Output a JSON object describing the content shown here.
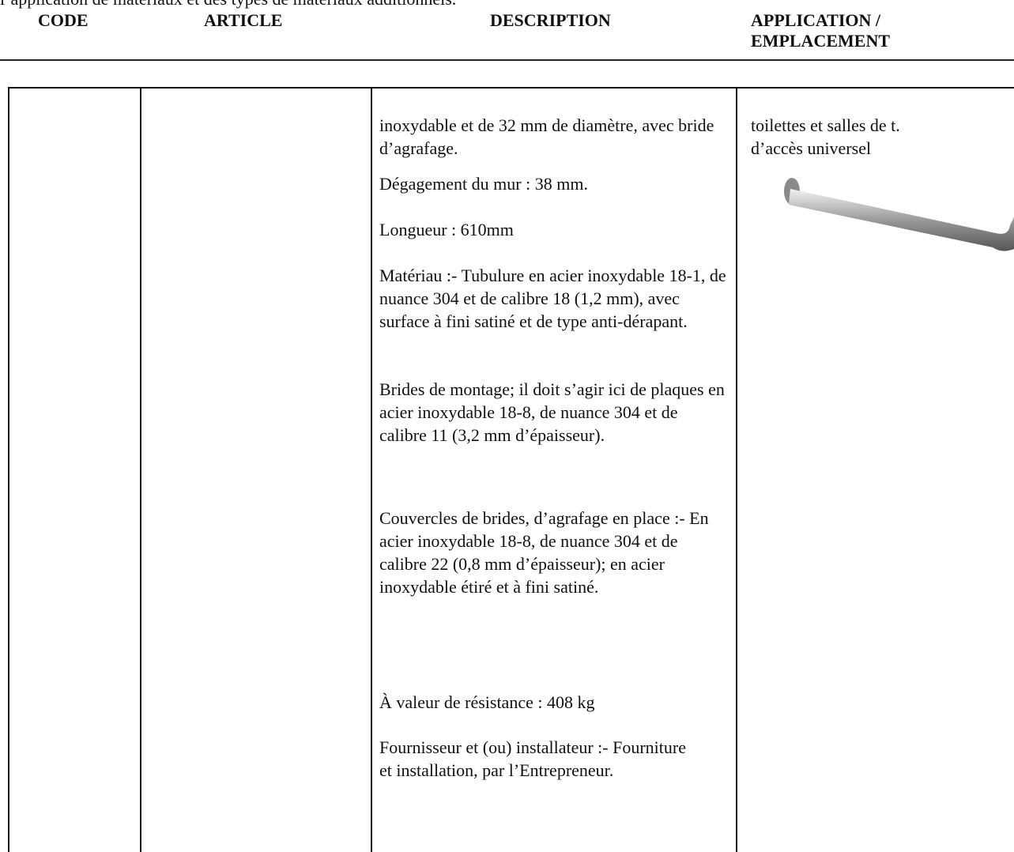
{
  "intro": "l’application de matériaux et des types de matériaux additionnels.",
  "header": {
    "columns": [
      "CODE",
      "ARTICLE",
      "DESCRIPTION",
      "APPLICATION / EMPLACEMENT"
    ]
  },
  "table": {
    "description": [
      "inoxydable et de 32 mm de diamètre, avec bride d’agrafage.",
      "Dégagement du mur : 38 mm.",
      "Longueur : 610mm",
      "Matériau :- Tubulure en acier inoxydable 18-1, de nuance 304 et de calibre 18 (1,2 mm), avec surface à fini satiné et de type anti-dérapant.",
      "Brides de montage; il doit s’agir ici de plaques en acier inoxydable 18-8, de nuance 304 et de calibre 11 (3,2 mm d’épaisseur).",
      "Couvercles de brides, d’agrafage en place :- En acier inoxydable 18-8, de nuance 304 et de calibre 22 (0,8 mm d’épaisseur); en acier inoxydable étiré et à fini satiné.",
      "À valeur de résistance : 408 kg",
      "Fournisseur et (ou) installateur :- Fourniture et installation, par l’Entrepreneur."
    ],
    "application": [
      "toilettes et salles de t.",
      "d’accès universel"
    ]
  }
}
